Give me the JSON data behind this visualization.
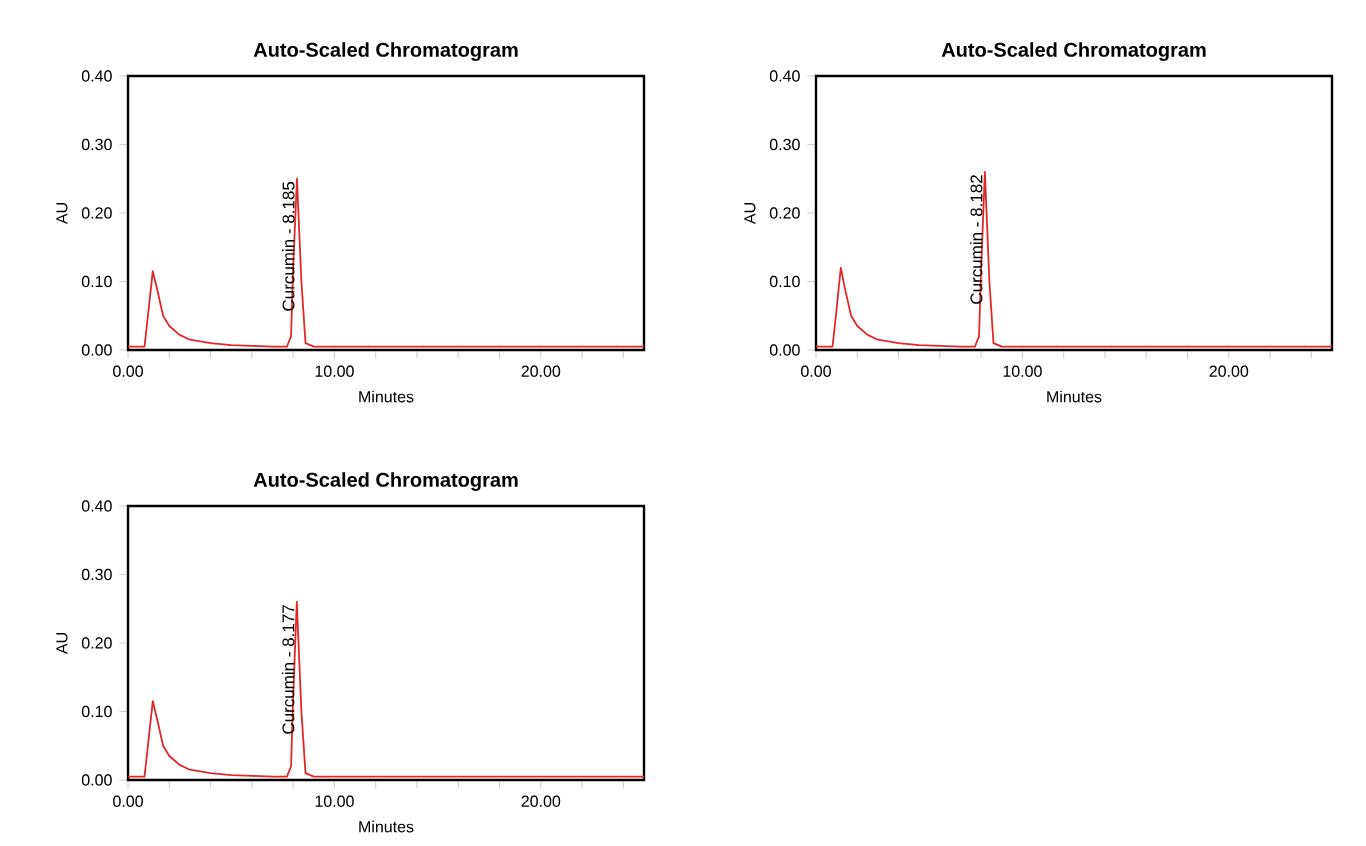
{
  "chart_data": [
    {
      "type": "line",
      "title": "Auto-Scaled Chromatogram",
      "xlabel": "Minutes",
      "ylabel": "AU",
      "x": [
        0,
        0.8,
        1.0,
        1.2,
        1.4,
        1.7,
        2.0,
        2.5,
        3,
        4,
        5,
        6,
        7,
        7.7,
        7.9,
        8.0,
        8.185,
        8.4,
        8.6,
        9,
        10,
        15,
        20,
        25
      ],
      "series": [
        {
          "color": "#e02828",
          "values": [
            0.005,
            0.005,
            0.06,
            0.115,
            0.09,
            0.05,
            0.035,
            0.022,
            0.015,
            0.01,
            0.007,
            0.006,
            0.005,
            0.005,
            0.02,
            0.12,
            0.25,
            0.1,
            0.01,
            0.005,
            0.005,
            0.005,
            0.005,
            0.005
          ]
        }
      ],
      "xlim": [
        0,
        25
      ],
      "ylim": [
        0,
        0.4
      ],
      "xticks": [
        {
          "value": 0,
          "label": "0.00"
        },
        {
          "value": 2,
          "label": null
        },
        {
          "value": 4,
          "label": null
        },
        {
          "value": 6,
          "label": null
        },
        {
          "value": 8,
          "label": null
        },
        {
          "value": 10,
          "label": "10.00"
        },
        {
          "value": 12,
          "label": null
        },
        {
          "value": 14,
          "label": null
        },
        {
          "value": 16,
          "label": null
        },
        {
          "value": 18,
          "label": null
        },
        {
          "value": 20,
          "label": "20.00"
        },
        {
          "value": 22,
          "label": null
        },
        {
          "value": 24,
          "label": null
        }
      ],
      "yticks": [
        {
          "value": 0,
          "label": "0.00"
        },
        {
          "value": 0.1,
          "label": "0.10"
        },
        {
          "value": 0.2,
          "label": "0.20"
        },
        {
          "value": 0.3,
          "label": "0.30"
        },
        {
          "value": 0.4,
          "label": "0.40"
        }
      ],
      "annotations": [
        {
          "text": "Curcumin - 8.185",
          "x": 8.185,
          "y": 0.25
        }
      ]
    },
    {
      "type": "line",
      "title": "Auto-Scaled Chromatogram",
      "xlabel": "Minutes",
      "ylabel": "AU",
      "x": [
        0,
        0.8,
        1.0,
        1.2,
        1.4,
        1.7,
        2.0,
        2.5,
        3,
        4,
        5,
        6,
        7,
        7.7,
        7.9,
        8.0,
        8.182,
        8.4,
        8.6,
        9,
        10,
        15,
        20,
        25
      ],
      "series": [
        {
          "color": "#e02828",
          "values": [
            0.005,
            0.005,
            0.06,
            0.12,
            0.09,
            0.05,
            0.035,
            0.022,
            0.015,
            0.01,
            0.007,
            0.006,
            0.005,
            0.005,
            0.02,
            0.12,
            0.26,
            0.1,
            0.01,
            0.005,
            0.005,
            0.005,
            0.005,
            0.005
          ]
        }
      ],
      "xlim": [
        0,
        25
      ],
      "ylim": [
        0,
        0.4
      ],
      "xticks": [
        {
          "value": 0,
          "label": "0.00"
        },
        {
          "value": 2,
          "label": null
        },
        {
          "value": 4,
          "label": null
        },
        {
          "value": 6,
          "label": null
        },
        {
          "value": 8,
          "label": null
        },
        {
          "value": 10,
          "label": "10.00"
        },
        {
          "value": 12,
          "label": null
        },
        {
          "value": 14,
          "label": null
        },
        {
          "value": 16,
          "label": null
        },
        {
          "value": 18,
          "label": null
        },
        {
          "value": 20,
          "label": "20.00"
        },
        {
          "value": 22,
          "label": null
        },
        {
          "value": 24,
          "label": null
        }
      ],
      "yticks": [
        {
          "value": 0,
          "label": "0.00"
        },
        {
          "value": 0.1,
          "label": "0.10"
        },
        {
          "value": 0.2,
          "label": "0.20"
        },
        {
          "value": 0.3,
          "label": "0.30"
        },
        {
          "value": 0.4,
          "label": "0.40"
        }
      ],
      "annotations": [
        {
          "text": "Curcumin - 8.182",
          "x": 8.182,
          "y": 0.26
        }
      ]
    },
    {
      "type": "line",
      "title": "Auto-Scaled Chromatogram",
      "xlabel": "Minutes",
      "ylabel": "AU",
      "x": [
        0,
        0.8,
        1.0,
        1.2,
        1.4,
        1.7,
        2.0,
        2.5,
        3,
        4,
        5,
        6,
        7,
        7.7,
        7.9,
        8.0,
        8.177,
        8.4,
        8.6,
        9,
        10,
        15,
        20,
        25
      ],
      "series": [
        {
          "color": "#e02828",
          "values": [
            0.005,
            0.005,
            0.06,
            0.115,
            0.09,
            0.05,
            0.035,
            0.022,
            0.015,
            0.01,
            0.007,
            0.006,
            0.005,
            0.005,
            0.02,
            0.12,
            0.26,
            0.1,
            0.01,
            0.005,
            0.005,
            0.005,
            0.005,
            0.005
          ]
        }
      ],
      "xlim": [
        0,
        25
      ],
      "ylim": [
        0,
        0.4
      ],
      "xticks": [
        {
          "value": 0,
          "label": "0.00"
        },
        {
          "value": 2,
          "label": null
        },
        {
          "value": 4,
          "label": null
        },
        {
          "value": 6,
          "label": null
        },
        {
          "value": 8,
          "label": null
        },
        {
          "value": 10,
          "label": "10.00"
        },
        {
          "value": 12,
          "label": null
        },
        {
          "value": 14,
          "label": null
        },
        {
          "value": 16,
          "label": null
        },
        {
          "value": 18,
          "label": null
        },
        {
          "value": 20,
          "label": "20.00"
        },
        {
          "value": 22,
          "label": null
        },
        {
          "value": 24,
          "label": null
        }
      ],
      "yticks": [
        {
          "value": 0,
          "label": "0.00"
        },
        {
          "value": 0.1,
          "label": "0.10"
        },
        {
          "value": 0.2,
          "label": "0.20"
        },
        {
          "value": 0.3,
          "label": "0.30"
        },
        {
          "value": 0.4,
          "label": "0.40"
        }
      ],
      "annotations": [
        {
          "text": "Curcumin - 8.177",
          "x": 8.177,
          "y": 0.26
        }
      ]
    }
  ]
}
